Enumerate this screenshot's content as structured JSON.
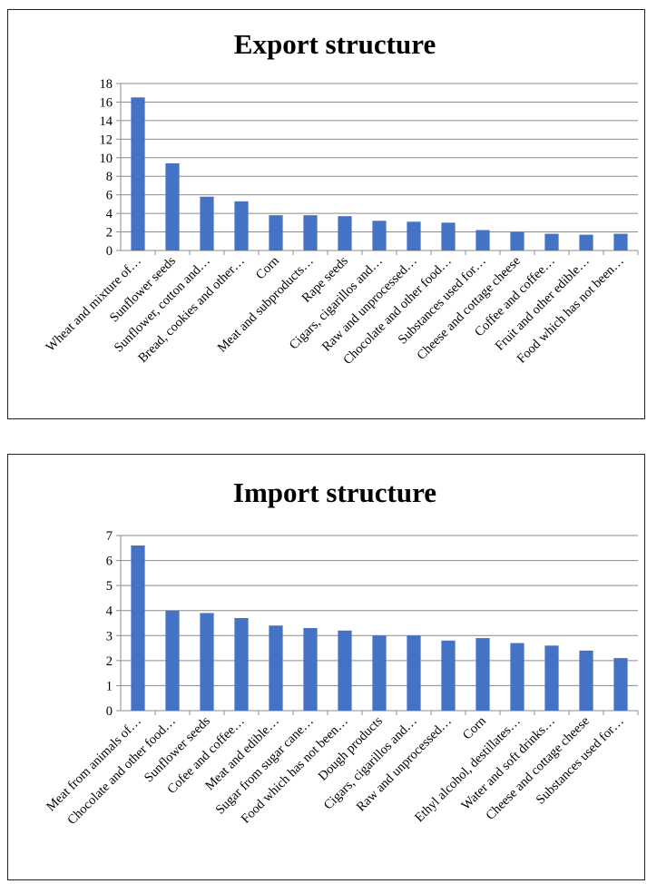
{
  "chart_data": [
    {
      "type": "bar",
      "title": "Export structure",
      "xlabel": "",
      "ylabel": "",
      "ylim": [
        0,
        18
      ],
      "yticks": [
        0,
        2,
        4,
        6,
        8,
        10,
        12,
        14,
        16,
        18
      ],
      "grid": true,
      "legend": "none",
      "color": "#4472C4",
      "categories": [
        "Wheat and mixture of…",
        "Sunflower seeds",
        "Sunflower, cotton and…",
        "Bread, cookies and other…",
        "Corn",
        "Meat and subproducts…",
        "Rape seeds",
        "Cigars, cigarillos and…",
        "Raw and unprocessed…",
        "Chocolate and other food…",
        "Substances used for…",
        "Cheese and cottage cheese",
        "Coffee and coffee…",
        "Fruit and other edible…",
        "Food which has not been…"
      ],
      "values": [
        16.5,
        9.4,
        5.8,
        5.3,
        3.8,
        3.8,
        3.7,
        3.2,
        3.1,
        3.0,
        2.2,
        2.0,
        1.8,
        1.7,
        1.8
      ]
    },
    {
      "type": "bar",
      "title": "Import structure",
      "xlabel": "",
      "ylabel": "",
      "ylim": [
        0,
        7
      ],
      "yticks": [
        0,
        1,
        2,
        3,
        4,
        5,
        6,
        7
      ],
      "grid": true,
      "legend": "none",
      "color": "#4472C4",
      "categories": [
        "Meat from animals of…",
        "Chocolate and other food…",
        "Sunflower seeds",
        "Cofee and coffee…",
        "Meat and edible…",
        "Sugar from sugar cane…",
        "Food which has not been…",
        "Dough products",
        "Cigars, cigarillos and…",
        "Raw and unprocessed…",
        "Corn",
        "Ethyl alcohol, destillates…",
        "Water and soft drinks…",
        "Cheese and cottage cheese",
        "Substances used for…"
      ],
      "values": [
        6.6,
        4.0,
        3.9,
        3.7,
        3.4,
        3.3,
        3.2,
        3.0,
        3.0,
        2.8,
        2.9,
        2.7,
        2.6,
        2.4,
        2.1
      ]
    }
  ]
}
